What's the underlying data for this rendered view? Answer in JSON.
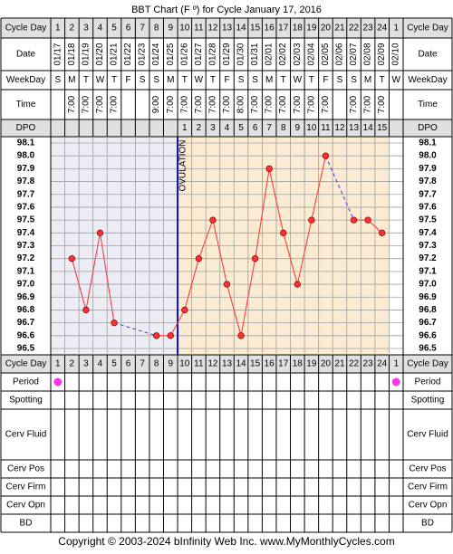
{
  "title": "BBT Chart (F º) for Cycle January 17, 2016",
  "footer": "Copyright © 2003-2024 bInfinity Web Inc.    www.MyMonthlyCycles.com",
  "labels": {
    "cycle_day": "Cycle Day",
    "date": "Date",
    "weekday": "WeekDay",
    "time": "Time",
    "dpo": "DPO",
    "period": "Period",
    "spotting": "Spotting",
    "cerv_fluid": "Cerv Fluid",
    "cerv_pos": "Cerv Pos",
    "cerv_firm": "Cerv Firm",
    "cerv_opn": "Cerv Opn",
    "bd": "BD"
  },
  "columns": {
    "cycle_days": [
      "1",
      "2",
      "3",
      "4",
      "5",
      "6",
      "7",
      "8",
      "9",
      "10",
      "11",
      "12",
      "13",
      "14",
      "15",
      "16",
      "17",
      "18",
      "19",
      "20",
      "21",
      "22",
      "23",
      "24",
      "1"
    ],
    "dates": [
      "01/17",
      "01/18",
      "01/19",
      "01/20",
      "01/21",
      "01/22",
      "01/23",
      "01/24",
      "01/25",
      "01/26",
      "01/27",
      "01/28",
      "01/29",
      "01/30",
      "01/31",
      "02/01",
      "02/02",
      "02/03",
      "02/04",
      "02/05",
      "02/06",
      "02/07",
      "02/08",
      "02/09",
      "02/10"
    ],
    "weekdays": [
      "S",
      "M",
      "T",
      "W",
      "T",
      "F",
      "S",
      "S",
      "M",
      "T",
      "W",
      "T",
      "F",
      "S",
      "S",
      "M",
      "T",
      "W",
      "T",
      "F",
      "S",
      "S",
      "M",
      "T",
      "W"
    ],
    "times": [
      "",
      "7:00",
      "7:00",
      "7:00",
      "7:00",
      "",
      "",
      "9:00",
      "7:00",
      "7:00",
      "7:00",
      "7:00",
      "7:00",
      "8:00",
      "7:00",
      "7:00",
      "7:00",
      "7:00",
      "7:00",
      "7:00",
      "",
      "7:00",
      "7:00",
      "7:00",
      ""
    ],
    "dpo": [
      "",
      "",
      "",
      "",
      "",
      "",
      "",
      "",
      "",
      "1",
      "2",
      "3",
      "4",
      "5",
      "6",
      "7",
      "8",
      "9",
      "10",
      "11",
      "12",
      "13",
      "14",
      "15",
      ""
    ]
  },
  "period_days": [
    1,
    25
  ],
  "ovulation_label": "OVULATION",
  "colors": {
    "header_bg": "#e0e0e0",
    "follicular_bg": "#ececf4",
    "luteal_bg": "#faebd2",
    "grid": "#a0a0a0",
    "line": "#ff3030",
    "dot": "#ff3030",
    "ovulation_line": "#1010c0",
    "period_dot": "#ff33ee"
  },
  "chart_data": {
    "type": "line",
    "title": "BBT Chart (F º) for Cycle January 17, 2016",
    "xlabel": "Cycle Day",
    "ylabel": "",
    "ylim": [
      96.5,
      98.1
    ],
    "yticks": [
      "98.1",
      "98.0",
      "97.9",
      "97.8",
      "97.7",
      "97.6",
      "97.5",
      "97.4",
      "97.3",
      "97.2",
      "97.1",
      "97.0",
      "96.9",
      "96.8",
      "96.7",
      "96.6",
      "96.5"
    ],
    "x": [
      1,
      2,
      3,
      4,
      5,
      6,
      7,
      8,
      9,
      10,
      11,
      12,
      13,
      14,
      15,
      16,
      17,
      18,
      19,
      20,
      21,
      22,
      23,
      24,
      25
    ],
    "series": [
      {
        "values": [
          null,
          97.2,
          96.8,
          97.4,
          96.7,
          null,
          null,
          96.6,
          96.6,
          96.8,
          97.2,
          97.5,
          97.0,
          96.6,
          97.2,
          97.9,
          97.4,
          97.0,
          97.5,
          98.0,
          null,
          97.5,
          97.5,
          97.4,
          null
        ]
      }
    ],
    "ovulation_day": 9,
    "grid": true
  }
}
